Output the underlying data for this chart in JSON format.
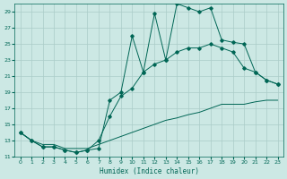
{
  "title": "",
  "xlabel": "Humidex (Indice chaleur)",
  "bg_color": "#cce8e4",
  "grid_color": "#aaccc8",
  "line_color": "#006655",
  "xlim": [
    -0.5,
    23.5
  ],
  "ylim": [
    11,
    30
  ],
  "xticks": [
    0,
    1,
    2,
    3,
    4,
    5,
    6,
    7,
    8,
    9,
    10,
    11,
    12,
    13,
    14,
    15,
    16,
    17,
    18,
    19,
    20,
    21,
    22,
    23
  ],
  "yticks": [
    11,
    13,
    15,
    17,
    19,
    21,
    23,
    25,
    27,
    29
  ],
  "line1_x": [
    0,
    1,
    2,
    3,
    4,
    5,
    6,
    7,
    8,
    9,
    10,
    11,
    12,
    13,
    14,
    15,
    16,
    17,
    18,
    19,
    20,
    21,
    22,
    23
  ],
  "line1_y": [
    14.0,
    13.0,
    12.2,
    12.2,
    11.8,
    11.5,
    11.8,
    12.0,
    18.0,
    19.0,
    26.0,
    21.5,
    28.8,
    23.0,
    30.0,
    29.5,
    29.0,
    29.5,
    25.5,
    25.2,
    25.0,
    21.5,
    20.5,
    20.0
  ],
  "line2_x": [
    0,
    1,
    2,
    3,
    4,
    5,
    6,
    7,
    8,
    9,
    10,
    11,
    12,
    13,
    14,
    15,
    16,
    17,
    18,
    19,
    20,
    21,
    22,
    23
  ],
  "line2_y": [
    14.0,
    13.0,
    12.2,
    12.2,
    11.8,
    11.5,
    11.8,
    13.0,
    16.0,
    18.5,
    19.5,
    21.5,
    22.5,
    23.0,
    24.0,
    24.5,
    24.5,
    25.0,
    24.5,
    24.0,
    22.0,
    21.5,
    20.5,
    20.0
  ],
  "line3_x": [
    0,
    1,
    2,
    3,
    4,
    5,
    6,
    7,
    8,
    9,
    10,
    11,
    12,
    13,
    14,
    15,
    16,
    17,
    18,
    19,
    20,
    21,
    22,
    23
  ],
  "line3_y": [
    14.0,
    13.0,
    12.5,
    12.5,
    12.0,
    12.0,
    12.0,
    12.5,
    13.0,
    13.5,
    14.0,
    14.5,
    15.0,
    15.5,
    15.8,
    16.2,
    16.5,
    17.0,
    17.5,
    17.5,
    17.5,
    17.8,
    18.0,
    18.0
  ]
}
